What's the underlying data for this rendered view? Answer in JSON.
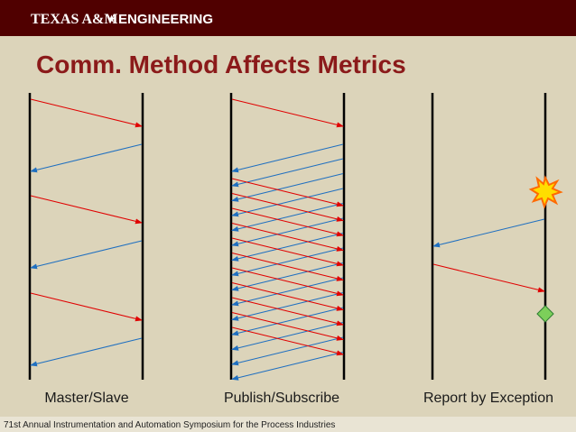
{
  "header": {
    "brand": "TEXAS A&M",
    "brand_suffix": "ENGINEERING"
  },
  "title": "Comm. Method Affects Metrics",
  "panels": [
    {
      "label": "Master/Slave"
    },
    {
      "label": "Publish/Subscribe"
    },
    {
      "label": "Report by Exception"
    }
  ],
  "footer": {
    "text": "71st Annual Instrumentation and Automation Symposium for the Process Industries"
  }
}
